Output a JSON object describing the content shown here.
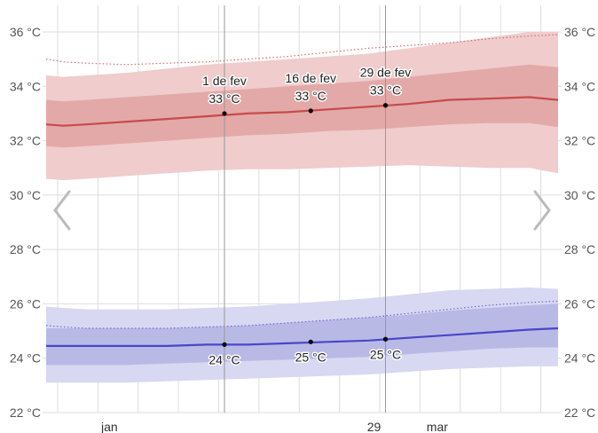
{
  "chart_data": {
    "type": "line",
    "title": "",
    "xlabel": "",
    "ylabel": "",
    "x_range_days": [
      1,
      90
    ],
    "ylim": [
      22,
      37
    ],
    "y_ticks": [
      22,
      24,
      26,
      28,
      30,
      32,
      34,
      36
    ],
    "y_tick_labels": [
      "22 °C",
      "24 °C",
      "26 °C",
      "28 °C",
      "30 °C",
      "32 °C",
      "34 °C",
      "36 °C"
    ],
    "x_tick_labels": [
      {
        "label": "jan",
        "day": 12
      },
      {
        "label": "29",
        "day": 58
      },
      {
        "label": "mar",
        "day": 69
      }
    ],
    "grid": true,
    "series": [
      {
        "key": "high",
        "color": "#c84a4a",
        "band_outer_color": "#f0cccc",
        "band_inner_color": "#e3a9a9",
        "dotted_color": "#d96b6b",
        "x": [
          1,
          4,
          8,
          15,
          22,
          29,
          36,
          43,
          50,
          57,
          64,
          71,
          78,
          85,
          90
        ],
        "mean": [
          32.6,
          32.55,
          32.6,
          32.7,
          32.8,
          32.9,
          33.0,
          33.05,
          33.15,
          33.25,
          33.35,
          33.5,
          33.55,
          33.6,
          33.5
        ],
        "p25": [
          31.8,
          31.75,
          31.8,
          31.9,
          32.0,
          32.1,
          32.2,
          32.25,
          32.35,
          32.4,
          32.5,
          32.6,
          32.65,
          32.65,
          32.5
        ],
        "p75": [
          33.5,
          33.45,
          33.5,
          33.6,
          33.7,
          33.8,
          33.9,
          34.0,
          34.1,
          34.2,
          34.35,
          34.5,
          34.65,
          34.8,
          34.7
        ],
        "p10": [
          30.6,
          30.55,
          30.6,
          30.7,
          30.8,
          30.9,
          30.95,
          30.95,
          31.0,
          31.05,
          31.1,
          31.05,
          31.0,
          31.0,
          30.8
        ],
        "p90": [
          34.4,
          34.35,
          34.4,
          34.5,
          34.65,
          34.8,
          34.9,
          35.0,
          35.1,
          35.2,
          35.4,
          35.6,
          35.8,
          36.0,
          36.0
        ],
        "dotted": [
          35.0,
          34.9,
          34.85,
          34.8,
          34.85,
          34.9,
          35.0,
          35.1,
          35.25,
          35.4,
          35.5,
          35.6,
          35.75,
          35.85,
          35.9
        ]
      },
      {
        "key": "low",
        "color": "#4747c9",
        "band_outer_color": "#d8d8f2",
        "band_inner_color": "#b9b9e6",
        "dotted_color": "#6b6bd9",
        "x": [
          1,
          4,
          8,
          15,
          22,
          29,
          36,
          43,
          50,
          57,
          64,
          71,
          78,
          85,
          90
        ],
        "mean": [
          24.45,
          24.45,
          24.45,
          24.45,
          24.45,
          24.5,
          24.5,
          24.55,
          24.6,
          24.65,
          24.75,
          24.85,
          24.95,
          25.05,
          25.1
        ],
        "p25": [
          23.75,
          23.75,
          23.75,
          23.75,
          23.8,
          23.85,
          23.9,
          23.95,
          24.0,
          24.05,
          24.15,
          24.25,
          24.35,
          24.4,
          24.4
        ],
        "p75": [
          25.1,
          25.1,
          25.1,
          25.1,
          25.1,
          25.15,
          25.2,
          25.3,
          25.4,
          25.5,
          25.6,
          25.75,
          25.85,
          25.95,
          26.0
        ],
        "p10": [
          23.1,
          23.1,
          23.1,
          23.1,
          23.15,
          23.2,
          23.25,
          23.3,
          23.35,
          23.4,
          23.5,
          23.6,
          23.65,
          23.7,
          23.7
        ],
        "p90": [
          25.9,
          25.85,
          25.8,
          25.8,
          25.8,
          25.85,
          25.9,
          26.0,
          26.1,
          26.2,
          26.35,
          26.5,
          26.55,
          26.6,
          26.55
        ],
        "dotted": [
          25.2,
          25.15,
          25.1,
          25.1,
          25.1,
          25.15,
          25.2,
          25.3,
          25.4,
          25.5,
          25.65,
          25.8,
          25.95,
          26.05,
          26.1
        ]
      }
    ],
    "annotations": [
      {
        "day": 32,
        "date": "1 de fev",
        "high": 33,
        "high_label": "33 °C",
        "low": 24.5,
        "low_label": "24 °C"
      },
      {
        "day": 47,
        "date": "16 de fev",
        "high": 33.1,
        "high_label": "33 °C",
        "low": 24.6,
        "low_label": "25 °C"
      },
      {
        "day": 60,
        "date": "29 de fev",
        "high": 33.3,
        "high_label": "33 °C",
        "low": 24.7,
        "low_label": "25 °C"
      }
    ],
    "nav": {
      "left_icon": "chevron-left-icon",
      "right_icon": "chevron-right-icon"
    }
  }
}
